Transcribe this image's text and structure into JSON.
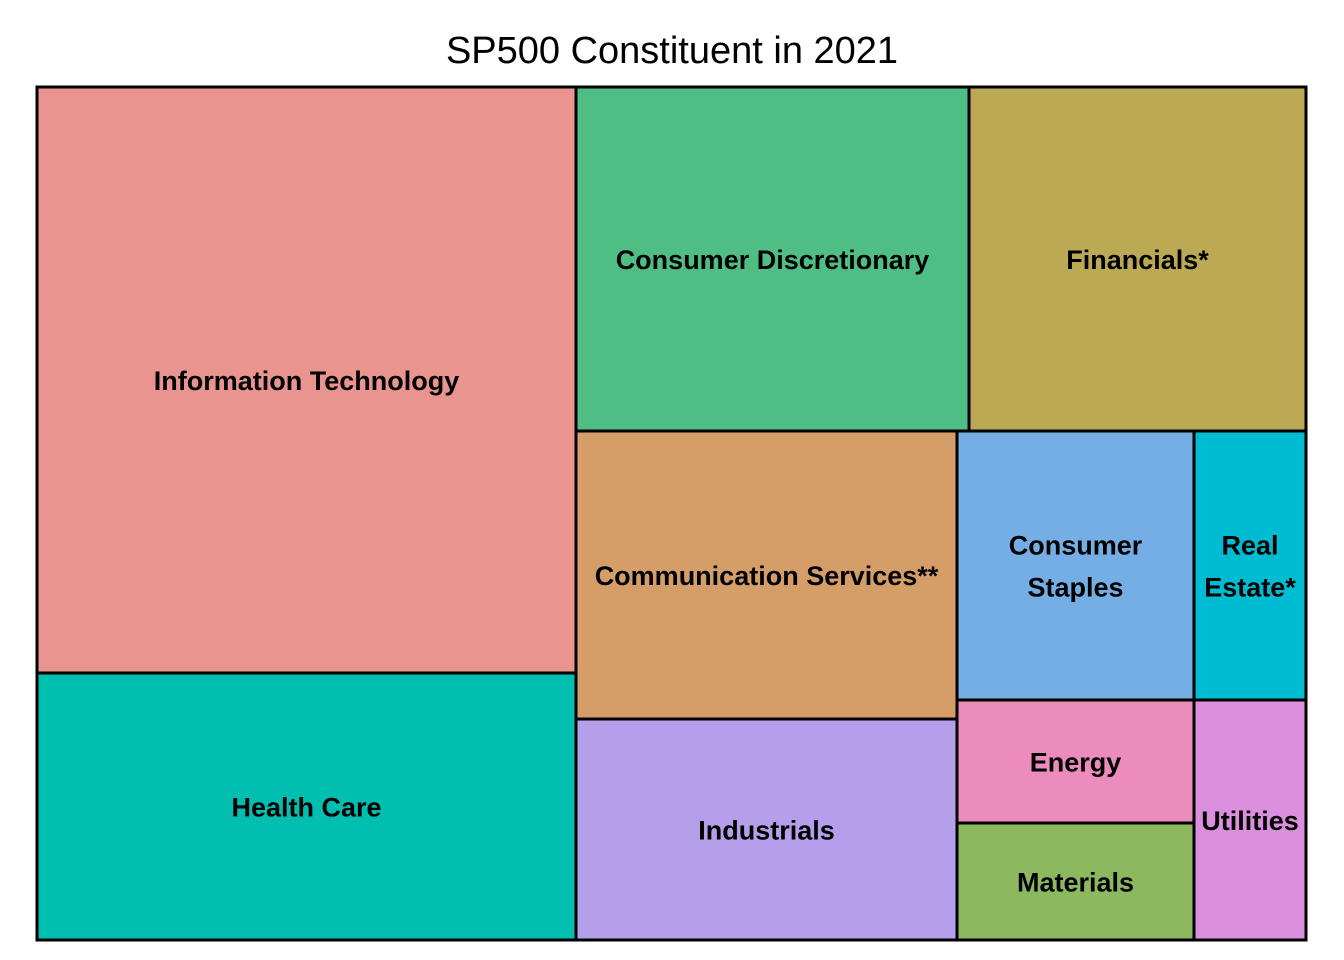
{
  "chart_data": {
    "type": "treemap",
    "title": "SP500 Constituent in 2021",
    "tiles": [
      {
        "label": "Information Technology",
        "lines": [
          "Information Technology"
        ],
        "color": "#E9948F"
      },
      {
        "label": "Health Care",
        "lines": [
          "Health Care"
        ],
        "color": "#00BFB1"
      },
      {
        "label": "Consumer Discretionary",
        "lines": [
          "Consumer Discretionary"
        ],
        "color": "#4FBE84"
      },
      {
        "label": "Financials*",
        "lines": [
          "Financials*"
        ],
        "color": "#BBAA53"
      },
      {
        "label": "Communication Services**",
        "lines": [
          "Communication Services**"
        ],
        "color": "#D59E68"
      },
      {
        "label": "Industrials",
        "lines": [
          "Industrials"
        ],
        "color": "#B59FEB"
      },
      {
        "label": "Consumer Staples",
        "lines": [
          "Consumer",
          "Staples"
        ],
        "color": "#74AEE4"
      },
      {
        "label": "Real Estate*",
        "lines": [
          "Real",
          "Estate*"
        ],
        "color": "#00BCD2"
      },
      {
        "label": "Energy",
        "lines": [
          "Energy"
        ],
        "color": "#EC8CBC"
      },
      {
        "label": "Materials",
        "lines": [
          "Materials"
        ],
        "color": "#8CB860"
      },
      {
        "label": "Utilities",
        "lines": [
          "Utilities"
        ],
        "color": "#DB90DD"
      }
    ]
  }
}
